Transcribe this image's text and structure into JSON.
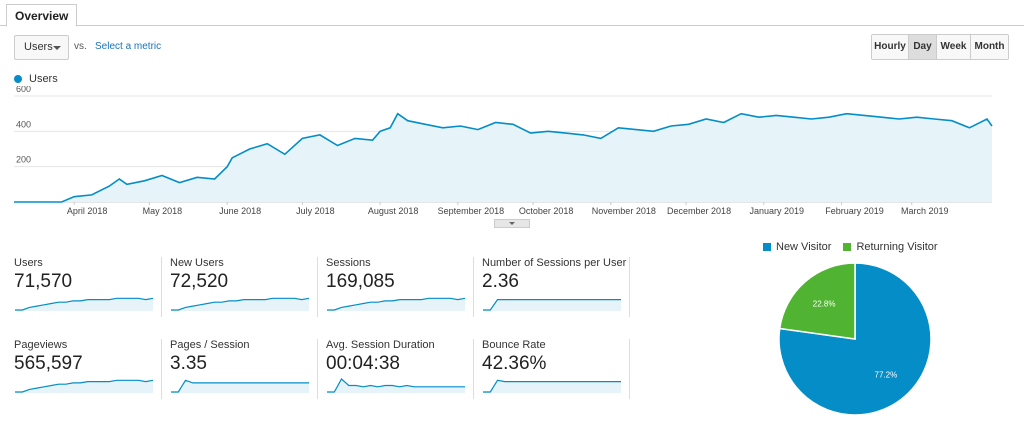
{
  "tabs": [
    {
      "label": "Overview"
    }
  ],
  "controls": {
    "metric": "Users",
    "vs": "vs.",
    "select_metric": "Select a metric",
    "granularity": [
      {
        "label": "Hourly",
        "active": false
      },
      {
        "label": "Day",
        "active": true
      },
      {
        "label": "Week",
        "active": false
      },
      {
        "label": "Month",
        "active": false
      }
    ]
  },
  "colors": {
    "users_line": "#058dc7",
    "users_fill": "#e6f4fa",
    "new_visitor": "#058dc7",
    "returning_visitor": "#50b432"
  },
  "chart_data": [
    {
      "type": "area",
      "legend": [
        "Users"
      ],
      "ylim": [
        0,
        600
      ],
      "yticks": [
        200,
        400,
        600
      ],
      "x_tick_labels": [
        "April 2018",
        "May 2018",
        "June 2018",
        "July 2018",
        "August 2018",
        "September 2018",
        "October 2018",
        "November 2018",
        "December 2018",
        "January 2019",
        "February 2019",
        "March 2019"
      ],
      "x_start": "2018-03-08",
      "x_end": "2019-04-02",
      "series": [
        {
          "name": "Users",
          "x": [
            "2018-03-08",
            "2018-03-27",
            "2018-04-01",
            "2018-04-08",
            "2018-04-15",
            "2018-04-19",
            "2018-04-22",
            "2018-04-29",
            "2018-05-06",
            "2018-05-13",
            "2018-05-20",
            "2018-05-27",
            "2018-06-01",
            "2018-06-03",
            "2018-06-10",
            "2018-06-17",
            "2018-06-24",
            "2018-07-01",
            "2018-07-08",
            "2018-07-15",
            "2018-07-22",
            "2018-07-29",
            "2018-08-01",
            "2018-08-05",
            "2018-08-08",
            "2018-08-12",
            "2018-08-19",
            "2018-08-26",
            "2018-09-02",
            "2018-09-09",
            "2018-09-16",
            "2018-09-23",
            "2018-09-30",
            "2018-10-07",
            "2018-10-14",
            "2018-10-21",
            "2018-10-28",
            "2018-11-04",
            "2018-11-11",
            "2018-11-18",
            "2018-11-25",
            "2018-12-02",
            "2018-12-09",
            "2018-12-16",
            "2018-12-23",
            "2018-12-30",
            "2019-01-06",
            "2019-01-13",
            "2019-01-20",
            "2019-01-27",
            "2019-02-03",
            "2019-02-10",
            "2019-02-17",
            "2019-02-24",
            "2019-03-03",
            "2019-03-10",
            "2019-03-17",
            "2019-03-24",
            "2019-03-31",
            "2019-04-02"
          ],
          "values": [
            0,
            0,
            30,
            40,
            90,
            130,
            100,
            120,
            150,
            110,
            140,
            130,
            200,
            250,
            300,
            330,
            270,
            360,
            380,
            320,
            360,
            350,
            400,
            420,
            500,
            460,
            440,
            420,
            430,
            410,
            450,
            440,
            390,
            400,
            390,
            380,
            360,
            420,
            410,
            400,
            430,
            440,
            470,
            450,
            500,
            480,
            490,
            480,
            470,
            480,
            500,
            490,
            480,
            470,
            480,
            470,
            460,
            420,
            470,
            430
          ]
        }
      ]
    },
    {
      "type": "pie",
      "legend": [
        "New Visitor",
        "Returning Visitor"
      ],
      "labels": [
        "New Visitor",
        "Returning Visitor"
      ],
      "values": [
        77.2,
        22.8
      ],
      "value_labels": [
        "77.2%",
        "22.8%"
      ]
    }
  ],
  "metrics": [
    {
      "label": "Users",
      "value": "71,570",
      "spark": [
        0,
        0,
        2,
        3,
        4,
        5,
        6,
        6,
        7,
        7,
        8,
        8,
        8,
        8,
        9,
        9,
        9,
        9,
        8,
        9
      ]
    },
    {
      "label": "New Users",
      "value": "72,520",
      "spark": [
        0,
        0,
        2,
        3,
        4,
        5,
        6,
        6,
        7,
        7,
        8,
        8,
        8,
        8,
        9,
        9,
        9,
        9,
        8,
        9
      ]
    },
    {
      "label": "Sessions",
      "value": "169,085",
      "spark": [
        0,
        0,
        2,
        3,
        4,
        5,
        6,
        6,
        7,
        7,
        8,
        8,
        8,
        8,
        9,
        9,
        9,
        9,
        8,
        9
      ]
    },
    {
      "label": "Number of Sessions per User",
      "value": "2.36",
      "spark": [
        0,
        0,
        8,
        8,
        8,
        8,
        8,
        8,
        8,
        8,
        8,
        8,
        8,
        8,
        8,
        8,
        8,
        8,
        8,
        8
      ]
    },
    {
      "label": "Pageviews",
      "value": "565,597",
      "spark": [
        0,
        0,
        2,
        3,
        4,
        5,
        6,
        6,
        7,
        7,
        8,
        8,
        8,
        8,
        9,
        9,
        9,
        9,
        8,
        9
      ]
    },
    {
      "label": "Pages / Session",
      "value": "3.35",
      "spark": [
        0,
        0,
        9,
        7,
        7,
        7,
        7,
        7,
        7,
        7,
        7,
        7,
        7,
        7,
        7,
        7,
        7,
        7,
        7,
        7
      ]
    },
    {
      "label": "Avg. Session Duration",
      "value": "00:04:38",
      "spark": [
        0,
        0,
        10,
        5,
        5,
        4,
        5,
        4,
        5,
        5,
        4,
        5,
        4,
        4,
        4,
        4,
        4,
        4,
        4,
        4
      ]
    },
    {
      "label": "Bounce Rate",
      "value": "42.36%",
      "spark": [
        0,
        0,
        9,
        8,
        8,
        8,
        8,
        8,
        8,
        8,
        8,
        8,
        8,
        8,
        8,
        8,
        8,
        8,
        8,
        8
      ]
    }
  ]
}
